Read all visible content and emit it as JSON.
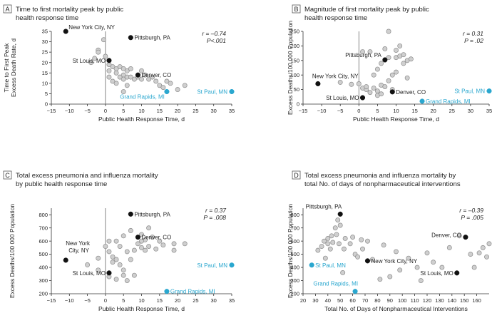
{
  "colors": {
    "gray_fill": "#cfcfcf",
    "gray_stroke": "#8a8a8a",
    "highlight": "#111111",
    "accent": "#2aa7cf",
    "axis": "#333333"
  },
  "chart_data": [
    {
      "panel": "A",
      "type": "scatter",
      "title_lines": [
        "Time to first mortality peak by public",
        "health response time"
      ],
      "xlabel": "Public Health Response Time, d",
      "ylabel_lines": [
        "Time to First Peak",
        "Excess Death Rate, d"
      ],
      "xlim": [
        -15,
        35
      ],
      "ylim": [
        0,
        35
      ],
      "xticks": [
        -15,
        -10,
        -5,
        0,
        5,
        10,
        15,
        20,
        25,
        30,
        35
      ],
      "yticks": [
        0,
        5,
        10,
        15,
        20,
        25,
        30,
        35
      ],
      "stats": [
        "r = –0.74",
        "P<.001"
      ],
      "points": [
        [
          -2,
          26
        ],
        [
          -2,
          25
        ],
        [
          -0.5,
          31
        ],
        [
          -4,
          20
        ],
        [
          -3,
          22
        ],
        [
          0,
          23
        ],
        [
          1,
          19
        ],
        [
          1,
          16
        ],
        [
          1,
          13
        ],
        [
          2,
          18
        ],
        [
          2,
          11
        ],
        [
          3,
          17
        ],
        [
          3,
          15
        ],
        [
          3,
          10
        ],
        [
          4,
          18
        ],
        [
          4,
          13
        ],
        [
          5,
          17
        ],
        [
          5,
          14
        ],
        [
          5,
          12
        ],
        [
          6,
          16
        ],
        [
          6,
          13
        ],
        [
          7,
          17
        ],
        [
          7,
          13
        ],
        [
          8,
          12
        ],
        [
          9,
          13
        ],
        [
          10,
          12
        ],
        [
          10,
          16
        ],
        [
          11,
          14
        ],
        [
          12,
          12
        ],
        [
          13,
          13
        ],
        [
          14,
          11
        ],
        [
          15,
          9
        ],
        [
          16,
          8
        ],
        [
          17,
          11
        ],
        [
          18,
          10
        ],
        [
          20,
          7
        ],
        [
          22,
          9
        ],
        [
          5,
          6
        ],
        [
          6,
          9
        ]
      ],
      "highlights": [
        {
          "label": "New York City, NY",
          "x": -11,
          "y": 35,
          "color": "dark"
        },
        {
          "label": "Pittsburgh, PA",
          "x": 7,
          "y": 32,
          "color": "dark"
        },
        {
          "label": "St Louis, MO",
          "x": 1,
          "y": 21,
          "color": "dark"
        },
        {
          "label": "Denver, CO",
          "x": 9,
          "y": 14,
          "color": "dark"
        },
        {
          "label": "Grand Rapids, MI",
          "x": 17,
          "y": 6,
          "color": "accent"
        },
        {
          "label": "St Paul, MN",
          "x": 35,
          "y": 6,
          "color": "accent"
        }
      ]
    },
    {
      "panel": "B",
      "type": "scatter",
      "title_lines": [
        "Magnitude of first mortality peak by public",
        "health response time"
      ],
      "xlabel": "Public Health Response Time, d",
      "ylabel_lines": [
        "Excess Deaths/100 000 Population"
      ],
      "xlim": [
        -15,
        35
      ],
      "ylim": [
        0,
        250
      ],
      "xticks": [
        -15,
        -10,
        -5,
        0,
        5,
        10,
        15,
        20,
        25,
        30,
        35
      ],
      "yticks": [
        0,
        50,
        100,
        150,
        200,
        250
      ],
      "stats": [
        "r = 0.31",
        "P = .02"
      ],
      "points": [
        [
          8,
          250
        ],
        [
          -2,
          68
        ],
        [
          -5,
          75
        ],
        [
          0,
          70
        ],
        [
          1,
          55
        ],
        [
          1,
          180
        ],
        [
          2,
          50
        ],
        [
          2,
          60
        ],
        [
          3,
          180
        ],
        [
          3,
          40
        ],
        [
          4,
          100
        ],
        [
          4,
          55
        ],
        [
          5,
          120
        ],
        [
          5,
          45
        ],
        [
          5,
          30
        ],
        [
          6,
          35
        ],
        [
          6,
          65
        ],
        [
          6,
          140
        ],
        [
          7,
          190
        ],
        [
          8,
          160
        ],
        [
          8,
          80
        ],
        [
          9,
          100
        ],
        [
          10,
          185
        ],
        [
          10,
          160
        ],
        [
          10,
          110
        ],
        [
          11,
          200
        ],
        [
          11,
          165
        ],
        [
          12,
          170
        ],
        [
          12,
          140
        ],
        [
          13,
          150
        ],
        [
          13,
          90
        ],
        [
          14,
          155
        ],
        [
          7,
          60
        ],
        [
          9,
          50
        ]
      ],
      "highlights": [
        {
          "label": "Pittsburgh, PA",
          "x": 7,
          "y": 152,
          "color": "dark"
        },
        {
          "label": "New York City, NY",
          "x": -11,
          "y": 70,
          "color": "dark"
        },
        {
          "label": "Denver, CO",
          "x": 9,
          "y": 42,
          "color": "dark"
        },
        {
          "label": "St Louis, MO",
          "x": 1,
          "y": 22,
          "color": "dark"
        },
        {
          "label": "Grand Rapids, MI",
          "x": 17,
          "y": 10,
          "color": "accent"
        },
        {
          "label": "St Paul, MN",
          "x": 35,
          "y": 45,
          "color": "accent"
        }
      ]
    },
    {
      "panel": "C",
      "type": "scatter",
      "title_lines": [
        "Total excess pneumonia and influenza mortality",
        "by public health response time"
      ],
      "xlabel": "Public Health Response Time, d",
      "ylabel_lines": [
        "Excess Deaths/100 000 Population"
      ],
      "xlim": [
        -15,
        35
      ],
      "ylim": [
        200,
        850
      ],
      "xticks": [
        -15,
        -10,
        -5,
        0,
        5,
        10,
        15,
        20,
        25,
        30,
        35
      ],
      "yticks": [
        200,
        300,
        400,
        500,
        600,
        700,
        800
      ],
      "stats": [
        "r = 0.37",
        "P = .008"
      ],
      "points": [
        [
          -5,
          420
        ],
        [
          -2,
          380
        ],
        [
          -2,
          470
        ],
        [
          0,
          560
        ],
        [
          1,
          520
        ],
        [
          1,
          600
        ],
        [
          1,
          330
        ],
        [
          2,
          480
        ],
        [
          2,
          440
        ],
        [
          3,
          600
        ],
        [
          3,
          310
        ],
        [
          4,
          560
        ],
        [
          4,
          420
        ],
        [
          5,
          640
        ],
        [
          5,
          380
        ],
        [
          5,
          340
        ],
        [
          6,
          520
        ],
        [
          6,
          300
        ],
        [
          7,
          460
        ],
        [
          7,
          680
        ],
        [
          8,
          530
        ],
        [
          8,
          340
        ],
        [
          9,
          580
        ],
        [
          10,
          550
        ],
        [
          10,
          650
        ],
        [
          11,
          610
        ],
        [
          11,
          530
        ],
        [
          12,
          700
        ],
        [
          12,
          560
        ],
        [
          13,
          630
        ],
        [
          14,
          540
        ],
        [
          15,
          600
        ],
        [
          16,
          570
        ],
        [
          19,
          580
        ],
        [
          19,
          530
        ],
        [
          22,
          580
        ],
        [
          10,
          600
        ],
        [
          3,
          460
        ]
      ],
      "highlights": [
        {
          "label": "Pittsburgh, PA",
          "x": 7,
          "y": 805,
          "color": "dark"
        },
        {
          "label": "Denver, CO",
          "x": 9,
          "y": 630,
          "color": "dark"
        },
        {
          "label": "New York City, NY",
          "x": -11,
          "y": 455,
          "color": "dark"
        },
        {
          "label": "St Louis, MO",
          "x": 1,
          "y": 358,
          "color": "dark"
        },
        {
          "label": "St Paul, MN",
          "x": 35,
          "y": 418,
          "color": "accent"
        },
        {
          "label": "Grand Rapids, MI",
          "x": 17,
          "y": 218,
          "color": "accent"
        }
      ]
    },
    {
      "panel": "D",
      "type": "scatter",
      "title_lines": [
        "Total excess pneumonia and influenza mortality by",
        "total No. of days of nonpharmaceutical interventions"
      ],
      "xlabel": "Total No. of Days of Nonpharmaceutical Interventions",
      "ylabel_lines": [
        "Excess Deaths/100 000 Population"
      ],
      "xlim": [
        20,
        170
      ],
      "ylim": [
        200,
        850
      ],
      "xticks": [
        20,
        30,
        40,
        50,
        60,
        70,
        80,
        90,
        100,
        110,
        120,
        130,
        140,
        150,
        160
      ],
      "yticks": [
        200,
        300,
        400,
        500,
        600,
        700,
        800
      ],
      "stats": [
        "r = –0.39",
        "P = .005"
      ],
      "points": [
        [
          32,
          530
        ],
        [
          35,
          560
        ],
        [
          37,
          600
        ],
        [
          38,
          470
        ],
        [
          40,
          620
        ],
        [
          40,
          580
        ],
        [
          42,
          540
        ],
        [
          43,
          640
        ],
        [
          44,
          590
        ],
        [
          46,
          700
        ],
        [
          47,
          650
        ],
        [
          48,
          760
        ],
        [
          49,
          580
        ],
        [
          50,
          720
        ],
        [
          52,
          360
        ],
        [
          53,
          540
        ],
        [
          54,
          620
        ],
        [
          58,
          580
        ],
        [
          60,
          630
        ],
        [
          62,
          500
        ],
        [
          64,
          480
        ],
        [
          67,
          610
        ],
        [
          68,
          540
        ],
        [
          72,
          600
        ],
        [
          76,
          460
        ],
        [
          82,
          310
        ],
        [
          90,
          330
        ],
        [
          98,
          380
        ],
        [
          105,
          470
        ],
        [
          112,
          400
        ],
        [
          115,
          300
        ],
        [
          120,
          510
        ],
        [
          125,
          440
        ],
        [
          132,
          400
        ],
        [
          138,
          550
        ],
        [
          146,
          640
        ],
        [
          155,
          500
        ],
        [
          158,
          400
        ],
        [
          162,
          510
        ],
        [
          165,
          550
        ],
        [
          168,
          480
        ],
        [
          170,
          580
        ],
        [
          95,
          520
        ],
        [
          85,
          570
        ]
      ],
      "highlights": [
        {
          "label": "Pittsburgh, PA",
          "x": 50,
          "y": 805,
          "color": "dark"
        },
        {
          "label": "Denver, CO",
          "x": 151,
          "y": 630,
          "color": "dark"
        },
        {
          "label": "New York City, NY",
          "x": 72,
          "y": 450,
          "color": "dark"
        },
        {
          "label": "St Louis, MO",
          "x": 144,
          "y": 358,
          "color": "dark"
        },
        {
          "label": "St Paul, MN",
          "x": 27,
          "y": 418,
          "color": "accent"
        },
        {
          "label": "Grand Rapids, MI",
          "x": 62,
          "y": 218,
          "color": "accent"
        }
      ]
    }
  ]
}
